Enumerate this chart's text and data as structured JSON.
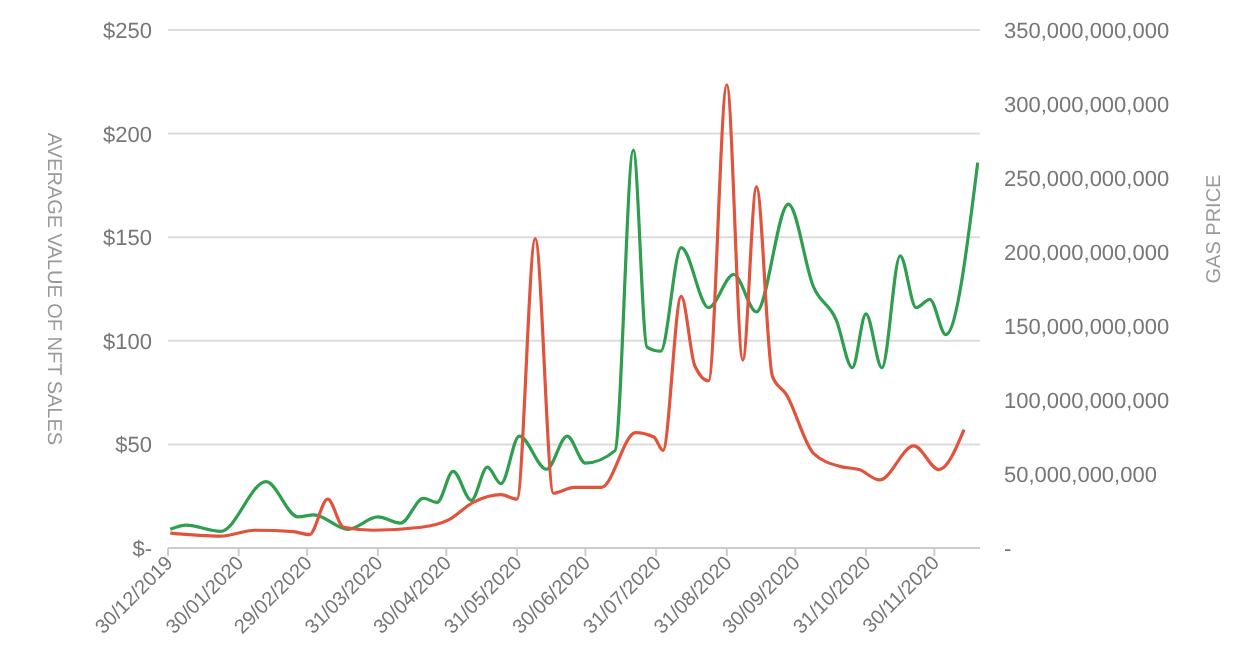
{
  "chart_data": {
    "type": "line",
    "ylabel": "AVERAGE VALUE OF NFT SALES",
    "y2label": "GAS PRICE",
    "xlim": [
      "2019-12-30",
      "2020-12-20"
    ],
    "xticks": [
      {
        "value": "2019-12-30",
        "label": "30/12/2019"
      },
      {
        "value": "2020-01-30",
        "label": "30/01/2020"
      },
      {
        "value": "2020-02-29",
        "label": "29/02/2020"
      },
      {
        "value": "2020-03-31",
        "label": "31/03/2020"
      },
      {
        "value": "2020-04-30",
        "label": "30/04/2020"
      },
      {
        "value": "2020-05-31",
        "label": "31/05/2020"
      },
      {
        "value": "2020-06-30",
        "label": "30/06/2020"
      },
      {
        "value": "2020-07-31",
        "label": "31/07/2020"
      },
      {
        "value": "2020-08-31",
        "label": "31/08/2020"
      },
      {
        "value": "2020-09-30",
        "label": "30/09/2020"
      },
      {
        "value": "2020-10-31",
        "label": "31/10/2020"
      },
      {
        "value": "2020-11-30",
        "label": "30/11/2020"
      }
    ],
    "ylim": [
      0,
      250
    ],
    "yticks": [
      {
        "value": 0,
        "label": "$-"
      },
      {
        "value": 50,
        "label": "$50"
      },
      {
        "value": 100,
        "label": "$100"
      },
      {
        "value": 150,
        "label": "$150"
      },
      {
        "value": 200,
        "label": "$200"
      },
      {
        "value": 250,
        "label": "$250"
      }
    ],
    "y2lim": [
      0,
      350000000000
    ],
    "y2ticks": [
      {
        "value": 0,
        "label": "-"
      },
      {
        "value": 50000000000,
        "label": "50,000,000,000"
      },
      {
        "value": 100000000000,
        "label": "100,000,000,000"
      },
      {
        "value": 150000000000,
        "label": "150,000,000,000"
      },
      {
        "value": 200000000000,
        "label": "200,000,000,000"
      },
      {
        "value": 250000000000,
        "label": "250,000,000,000"
      },
      {
        "value": 300000000000,
        "label": "300,000,000,000"
      },
      {
        "value": 350000000000,
        "label": "350,000,000,000"
      }
    ],
    "grid": "y",
    "marker": "none",
    "line_style": "solid",
    "series": [
      {
        "color": "#2e9e4f",
        "x": [
          "2019-12-31",
          "2020-01-07",
          "2020-01-22",
          "2020-02-11",
          "2020-02-25",
          "2020-03-03",
          "2020-03-18",
          "2020-03-31",
          "2020-04-10",
          "2020-04-20",
          "2020-04-26",
          "2020-05-03",
          "2020-05-11",
          "2020-05-18",
          "2020-05-24",
          "2020-06-01",
          "2020-06-13",
          "2020-06-22",
          "2020-06-30",
          "2020-07-13",
          "2020-07-21",
          "2020-07-27",
          "2020-08-02",
          "2020-08-11",
          "2020-08-23",
          "2020-09-03",
          "2020-09-13",
          "2020-09-27",
          "2020-10-08",
          "2020-10-18",
          "2020-10-25",
          "2020-10-31",
          "2020-11-07",
          "2020-11-15",
          "2020-11-22",
          "2020-11-28",
          "2020-12-05",
          "2020-12-19"
        ],
        "values": [
          9,
          11,
          8,
          32,
          15,
          16,
          9,
          15,
          12,
          24,
          22,
          37,
          23,
          39,
          31,
          54,
          38,
          54,
          41,
          47,
          192,
          97,
          95,
          145,
          116,
          132,
          114,
          166,
          126,
          110,
          87,
          113,
          87,
          141,
          116,
          120,
          103,
          186
        ]
      },
      {
        "color": "#e0533d",
        "axis": "y2",
        "x": [
          "2019-12-31",
          "2020-01-22",
          "2020-02-06",
          "2020-02-23",
          "2020-03-01",
          "2020-03-09",
          "2020-03-16",
          "2020-03-29",
          "2020-04-19",
          "2020-05-01",
          "2020-05-12",
          "2020-05-24",
          "2020-05-31",
          "2020-06-08",
          "2020-06-16",
          "2020-06-25",
          "2020-07-07",
          "2020-07-22",
          "2020-07-30",
          "2020-08-03",
          "2020-08-11",
          "2020-08-17",
          "2020-08-23",
          "2020-08-31",
          "2020-09-07",
          "2020-09-13",
          "2020-09-20",
          "2020-09-26",
          "2020-10-08",
          "2020-10-20",
          "2020-10-28",
          "2020-11-06",
          "2020-11-21",
          "2020-12-02",
          "2020-12-13"
        ],
        "values": [
          10000000000,
          8000000000,
          12000000000,
          11000000000,
          9000000000,
          33000000000,
          14000000000,
          12000000000,
          14000000000,
          19000000000,
          31000000000,
          36000000000,
          33000000000,
          209000000000,
          37000000000,
          41000000000,
          41000000000,
          78000000000,
          75000000000,
          66000000000,
          170000000000,
          123000000000,
          113000000000,
          313000000000,
          127000000000,
          244000000000,
          116000000000,
          104000000000,
          64000000000,
          55000000000,
          53000000000,
          46000000000,
          69000000000,
          53000000000,
          80000000000
        ]
      }
    ]
  }
}
